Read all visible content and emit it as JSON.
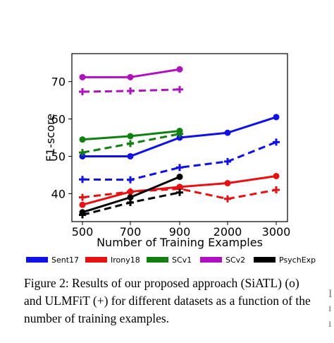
{
  "chart_data": {
    "type": "line",
    "xlabel": "Number of Training Examples",
    "ylabel": "F1-score",
    "categories": [
      "500",
      "700",
      "900",
      "2000",
      "3000"
    ],
    "yticks": [
      40,
      50,
      60,
      70
    ],
    "ylim": [
      32.5,
      77.5
    ],
    "grid": false,
    "legend_position": "below",
    "series": [
      {
        "name": "Sent17",
        "color": "#1010e8",
        "method": "SiATL",
        "marker": "o",
        "linestyle": "solid",
        "values": [
          50.0,
          50.0,
          55.0,
          56.3,
          60.5
        ]
      },
      {
        "name": "Sent17",
        "color": "#1010e8",
        "method": "ULMFiT",
        "marker": "+",
        "linestyle": "dashed",
        "values": [
          43.8,
          43.7,
          47.0,
          48.6,
          53.8
        ]
      },
      {
        "name": "Irony18",
        "color": "#e81010",
        "method": "SiATL",
        "marker": "o",
        "linestyle": "solid",
        "values": [
          37.0,
          40.5,
          41.8,
          42.8,
          44.7
        ]
      },
      {
        "name": "Irony18",
        "color": "#e81010",
        "method": "ULMFiT",
        "marker": "+",
        "linestyle": "dashed",
        "values": [
          39.0,
          40.5,
          41.3,
          38.6,
          41.0
        ]
      },
      {
        "name": "SCv1",
        "color": "#108010",
        "method": "SiATL",
        "marker": "o",
        "linestyle": "solid",
        "values": [
          54.5,
          55.4,
          56.8,
          null,
          null
        ]
      },
      {
        "name": "SCv1",
        "color": "#108010",
        "method": "ULMFiT",
        "marker": "+",
        "linestyle": "dashed",
        "values": [
          51.0,
          53.4,
          56.0,
          null,
          null
        ]
      },
      {
        "name": "SCv2",
        "color": "#b010c0",
        "method": "SiATL",
        "marker": "o",
        "linestyle": "solid",
        "values": [
          71.2,
          71.2,
          73.3,
          null,
          null
        ]
      },
      {
        "name": "SCv2",
        "color": "#b010c0",
        "method": "ULMFiT",
        "marker": "+",
        "linestyle": "dashed",
        "values": [
          67.3,
          67.5,
          67.9,
          null,
          null
        ]
      },
      {
        "name": "PsychExp",
        "color": "#000000",
        "method": "SiATL",
        "marker": "o",
        "linestyle": "solid",
        "values": [
          35.0,
          39.0,
          44.5,
          null,
          null
        ]
      },
      {
        "name": "PsychExp",
        "color": "#000000",
        "method": "ULMFiT",
        "marker": "+",
        "linestyle": "dashed",
        "values": [
          34.3,
          37.6,
          40.3,
          null,
          null
        ]
      }
    ],
    "legend": [
      {
        "label": "Sent17",
        "color": "#1010e8"
      },
      {
        "label": "Irony18",
        "color": "#e81010"
      },
      {
        "label": "SCv1",
        "color": "#108010"
      },
      {
        "label": "SCv2",
        "color": "#b010c0"
      },
      {
        "label": "PsychExp",
        "color": "#000000"
      }
    ]
  },
  "caption": "Figure 2: Results of our proposed approach (SiATL) (o) and ULMFiT (+) for different datasets as a function of the number of training examples."
}
